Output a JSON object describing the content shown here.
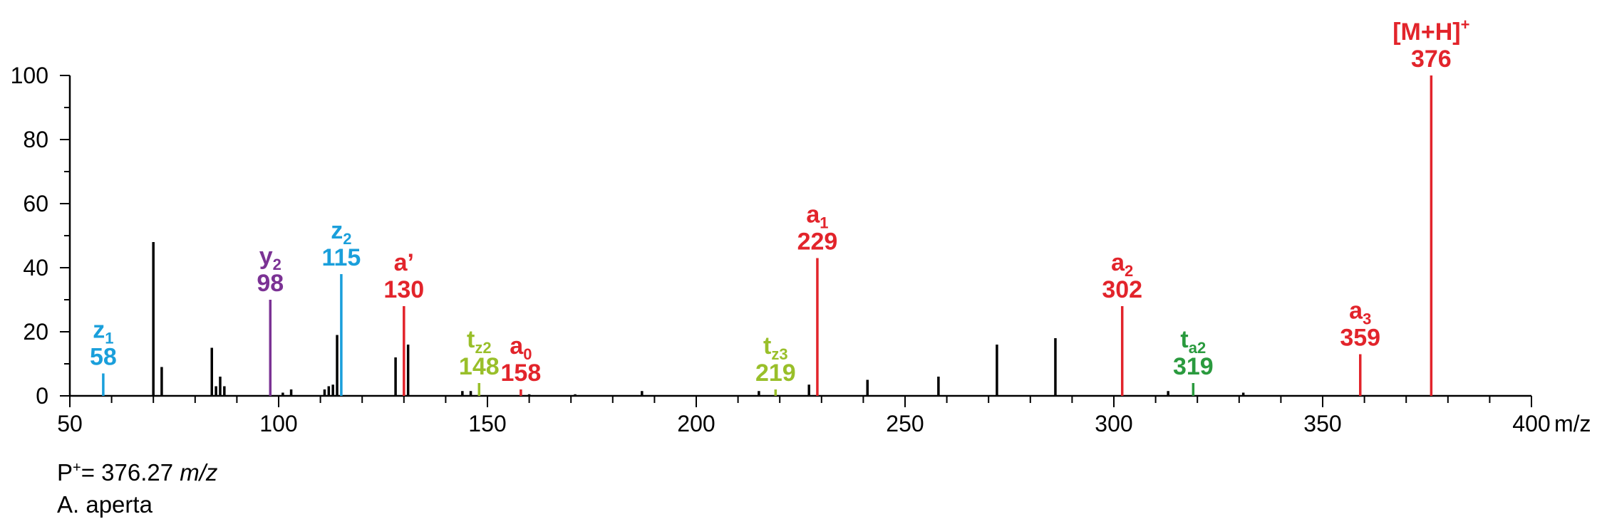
{
  "chart_data": {
    "type": "bar",
    "subtype": "mass-spectrum",
    "xlabel": "m/z",
    "ylabel": "",
    "xlim": [
      50,
      400
    ],
    "ylim": [
      0,
      100
    ],
    "x_ticks": [
      "50",
      "100",
      "150",
      "200",
      "250",
      "300",
      "350",
      "400"
    ],
    "y_ticks": [
      "0",
      "20",
      "40",
      "60",
      "80",
      "100"
    ],
    "grid": false,
    "colors": {
      "unlabeled": "#000000",
      "z": "#1a9fdb",
      "y": "#7b3294",
      "a": "#e2242b",
      "t_z": "#99bf2a",
      "t_a": "#2a9a3e"
    },
    "labeled_peaks": [
      {
        "mz": 58,
        "intensity": 7,
        "ion": "z",
        "sub": "1",
        "sup": "",
        "value": "58",
        "color": "#1a9fdb"
      },
      {
        "mz": 98,
        "intensity": 30,
        "ion": "y",
        "sub": "2",
        "sup": "",
        "value": "98",
        "color": "#7b3294"
      },
      {
        "mz": 115,
        "intensity": 38,
        "ion": "z",
        "sub": "2",
        "sup": "",
        "value": "115",
        "color": "#1a9fdb"
      },
      {
        "mz": 130,
        "intensity": 28,
        "ion": "a’",
        "sub": "",
        "sup": "",
        "value": "130",
        "color": "#e2242b"
      },
      {
        "mz": 148,
        "intensity": 4,
        "ion": "t",
        "sub": "z2",
        "sup": "",
        "value": "148",
        "color": "#99bf2a"
      },
      {
        "mz": 158,
        "intensity": 2,
        "ion": "a",
        "sub": "0",
        "sup": "",
        "value": "158",
        "color": "#e2242b"
      },
      {
        "mz": 219,
        "intensity": 2,
        "ion": "t",
        "sub": "z3",
        "sup": "",
        "value": "219",
        "color": "#99bf2a"
      },
      {
        "mz": 229,
        "intensity": 43,
        "ion": "a",
        "sub": "1",
        "sup": "",
        "value": "229",
        "color": "#e2242b"
      },
      {
        "mz": 302,
        "intensity": 28,
        "ion": "a",
        "sub": "2",
        "sup": "",
        "value": "302",
        "color": "#e2242b"
      },
      {
        "mz": 319,
        "intensity": 4,
        "ion": "t",
        "sub": "a2",
        "sup": "",
        "value": "319",
        "color": "#2a9a3e"
      },
      {
        "mz": 359,
        "intensity": 13,
        "ion": "a",
        "sub": "3",
        "sup": "",
        "value": "359",
        "color": "#e2242b"
      },
      {
        "mz": 376,
        "intensity": 100,
        "ion": "[M+H]",
        "sub": "",
        "sup": "+",
        "value": "376",
        "color": "#e2242b"
      }
    ],
    "unlabeled_peaks": [
      {
        "mz": 70,
        "intensity": 48
      },
      {
        "mz": 72,
        "intensity": 9
      },
      {
        "mz": 84,
        "intensity": 15
      },
      {
        "mz": 85,
        "intensity": 3
      },
      {
        "mz": 86,
        "intensity": 6
      },
      {
        "mz": 87,
        "intensity": 3
      },
      {
        "mz": 101,
        "intensity": 1
      },
      {
        "mz": 103,
        "intensity": 2
      },
      {
        "mz": 111,
        "intensity": 2
      },
      {
        "mz": 112,
        "intensity": 3
      },
      {
        "mz": 113,
        "intensity": 3.5
      },
      {
        "mz": 114,
        "intensity": 19
      },
      {
        "mz": 128,
        "intensity": 12
      },
      {
        "mz": 131,
        "intensity": 16
      },
      {
        "mz": 144,
        "intensity": 1.5
      },
      {
        "mz": 146,
        "intensity": 1.5
      },
      {
        "mz": 160,
        "intensity": 0.5
      },
      {
        "mz": 171,
        "intensity": 0.5
      },
      {
        "mz": 187,
        "intensity": 1.5
      },
      {
        "mz": 215,
        "intensity": 1.5
      },
      {
        "mz": 227,
        "intensity": 3.5
      },
      {
        "mz": 241,
        "intensity": 5
      },
      {
        "mz": 258,
        "intensity": 6
      },
      {
        "mz": 272,
        "intensity": 16
      },
      {
        "mz": 286,
        "intensity": 18
      },
      {
        "mz": 313,
        "intensity": 1.5
      },
      {
        "mz": 331,
        "intensity": 1
      }
    ]
  },
  "caption": {
    "precursor_prefix": "P",
    "precursor_sup": "+",
    "precursor_value": "= 376.27",
    "precursor_unit": "m/z",
    "species": "A. aperta"
  }
}
